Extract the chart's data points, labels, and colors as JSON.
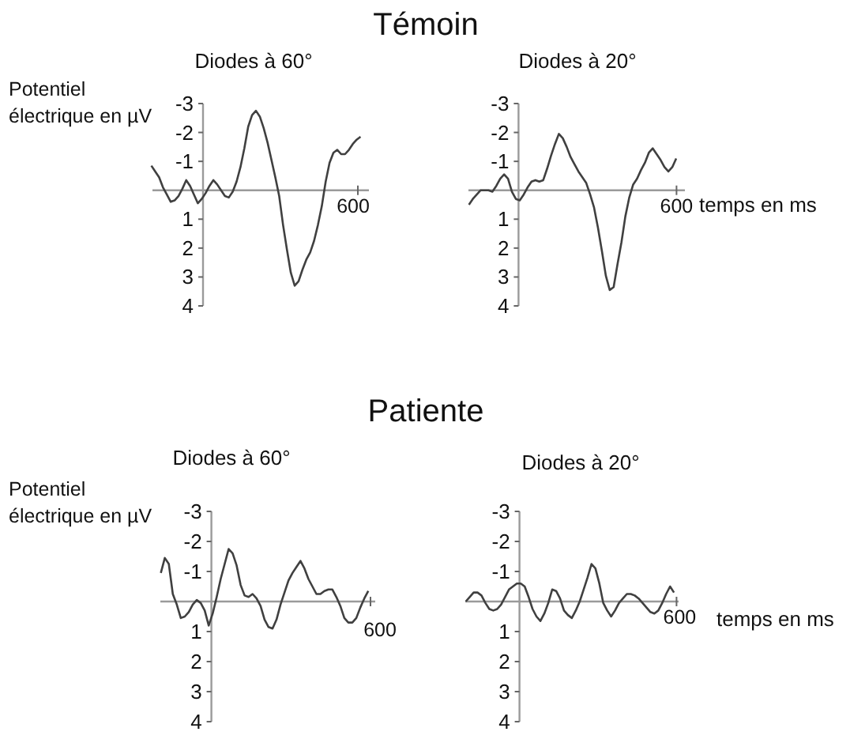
{
  "chart_data": [
    {
      "type": "line",
      "title": "Témoin",
      "subtitle": "Diodes à 60°",
      "ylabel": "Potentiel électrique en µV",
      "annotations": [
        "600"
      ],
      "color": "#404040",
      "ylim": [
        4,
        -3
      ],
      "yticks": [
        -3,
        -2,
        -1,
        1,
        2,
        3,
        4
      ],
      "categories": [
        null,
        null,
        null,
        null,
        null,
        null,
        null,
        null,
        null,
        null,
        null,
        null,
        null,
        null,
        null,
        null,
        null,
        null,
        null,
        null,
        null,
        null,
        null,
        null,
        null,
        null,
        null,
        null,
        null,
        null,
        null,
        null,
        null,
        null,
        null,
        null,
        null,
        null,
        null,
        null,
        null,
        null,
        null,
        null,
        null,
        null,
        null,
        null,
        null,
        null,
        null,
        null,
        null,
        null,
        null
      ],
      "values": [
        -0.85,
        -0.65,
        -0.45,
        -0.1,
        0.15,
        0.4,
        0.35,
        0.2,
        -0.05,
        -0.35,
        -0.15,
        0.15,
        0.45,
        0.3,
        0.1,
        -0.15,
        -0.35,
        -0.2,
        0,
        0.2,
        0.25,
        0.05,
        -0.3,
        -0.8,
        -1.45,
        -2.2,
        -2.6,
        -2.75,
        -2.55,
        -2.15,
        -1.65,
        -1.05,
        -0.45,
        0.2,
        1.2,
        2.05,
        2.85,
        3.3,
        3.15,
        2.75,
        2.4,
        2.15,
        1.75,
        1.2,
        0.55,
        -0.3,
        -0.95,
        -1.3,
        -1.4,
        -1.25,
        -1.25,
        -1.4,
        -1.6,
        -1.75,
        -1.85
      ]
    },
    {
      "type": "line",
      "subtitle": "Diodes à 20°",
      "xlabel": "temps en ms",
      "annotations": [
        "600"
      ],
      "color": "#404040",
      "ylim": [
        4,
        -3
      ],
      "yticks": [
        -3,
        -2,
        -1,
        1,
        2,
        3,
        4
      ],
      "categories": [
        null,
        null,
        null,
        null,
        null,
        null,
        null,
        null,
        null,
        null,
        null,
        null,
        null,
        null,
        null,
        null,
        null,
        null,
        null,
        null,
        null,
        null,
        null,
        null,
        null,
        null,
        null,
        null,
        null,
        null,
        null,
        null,
        null,
        null,
        null,
        null,
        null,
        null,
        null,
        null,
        null,
        null,
        null,
        null,
        null,
        null,
        null,
        null,
        null,
        null,
        null,
        null,
        null,
        null
      ],
      "values": [
        0.5,
        0.3,
        0.15,
        0,
        0,
        0,
        0.05,
        -0.15,
        -0.4,
        -0.55,
        -0.4,
        0.05,
        0.3,
        0.35,
        0.15,
        -0.1,
        -0.3,
        -0.35,
        -0.3,
        -0.35,
        -0.75,
        -1.2,
        -1.6,
        -1.95,
        -1.8,
        -1.5,
        -1.15,
        -0.9,
        -0.65,
        -0.45,
        -0.25,
        0.15,
        0.6,
        1.3,
        2.1,
        2.95,
        3.45,
        3.35,
        2.55,
        1.8,
        0.9,
        0.25,
        -0.2,
        -0.4,
        -0.7,
        -0.95,
        -1.3,
        -1.45,
        -1.25,
        -1.05,
        -0.8,
        -0.65,
        -0.8,
        -1.1
      ]
    },
    {
      "type": "line",
      "title": "Patiente",
      "subtitle": "Diodes à 60°",
      "ylabel": "Potentiel électrique en µV",
      "annotations": [
        "600"
      ],
      "color": "#404040",
      "ylim": [
        4,
        -3
      ],
      "yticks": [
        -3,
        -2,
        -1,
        1,
        2,
        3,
        4
      ],
      "categories": [
        null,
        null,
        null,
        null,
        null,
        null,
        null,
        null,
        null,
        null,
        null,
        null,
        null,
        null,
        null,
        null,
        null,
        null,
        null,
        null,
        null,
        null,
        null,
        null,
        null,
        null,
        null,
        null,
        null,
        null,
        null,
        null,
        null,
        null,
        null,
        null,
        null,
        null,
        null,
        null,
        null,
        null,
        null,
        null,
        null,
        null,
        null,
        null,
        null,
        null,
        null,
        null,
        null
      ],
      "values": [
        -0.95,
        -1.45,
        -1.25,
        -0.25,
        0.1,
        0.55,
        0.5,
        0.35,
        0.1,
        -0.05,
        0.05,
        0.3,
        0.8,
        0.4,
        -0.15,
        -0.75,
        -1.25,
        -1.75,
        -1.6,
        -1.2,
        -0.55,
        -0.2,
        -0.15,
        -0.25,
        -0.1,
        0.15,
        0.6,
        0.85,
        0.9,
        0.6,
        0.1,
        -0.3,
        -0.7,
        -0.95,
        -1.15,
        -1.35,
        -1.1,
        -0.75,
        -0.5,
        -0.25,
        -0.25,
        -0.35,
        -0.4,
        -0.4,
        -0.15,
        0.15,
        0.55,
        0.7,
        0.7,
        0.55,
        0.2,
        -0.1,
        -0.35
      ]
    },
    {
      "type": "line",
      "subtitle": "Diodes à 20°",
      "xlabel": "temps en ms",
      "annotations": [
        "600"
      ],
      "color": "#404040",
      "ylim": [
        4,
        -3
      ],
      "yticks": [
        -3,
        -2,
        -1,
        1,
        2,
        3,
        4
      ],
      "categories": [
        null,
        null,
        null,
        null,
        null,
        null,
        null,
        null,
        null,
        null,
        null,
        null,
        null,
        null,
        null,
        null,
        null,
        null,
        null,
        null,
        null,
        null,
        null,
        null,
        null,
        null,
        null,
        null,
        null,
        null,
        null,
        null,
        null,
        null,
        null,
        null,
        null,
        null,
        null,
        null,
        null,
        null,
        null,
        null,
        null,
        null,
        null,
        null,
        null,
        null,
        null,
        null,
        null,
        null
      ],
      "values": [
        0,
        -0.15,
        -0.3,
        -0.3,
        -0.2,
        0.05,
        0.25,
        0.3,
        0.25,
        0.1,
        -0.15,
        -0.4,
        -0.5,
        -0.6,
        -0.6,
        -0.5,
        -0.15,
        0.25,
        0.5,
        0.65,
        0.4,
        0.05,
        -0.4,
        -0.35,
        -0.1,
        0.3,
        0.45,
        0.55,
        0.3,
        0,
        -0.4,
        -0.8,
        -1.25,
        -1.1,
        -0.6,
        0.05,
        0.3,
        0.5,
        0.3,
        0.05,
        -0.1,
        -0.25,
        -0.25,
        -0.2,
        -0.1,
        0.05,
        0.2,
        0.35,
        0.4,
        0.3,
        0.05,
        -0.25,
        -0.5,
        -0.3
      ]
    }
  ]
}
